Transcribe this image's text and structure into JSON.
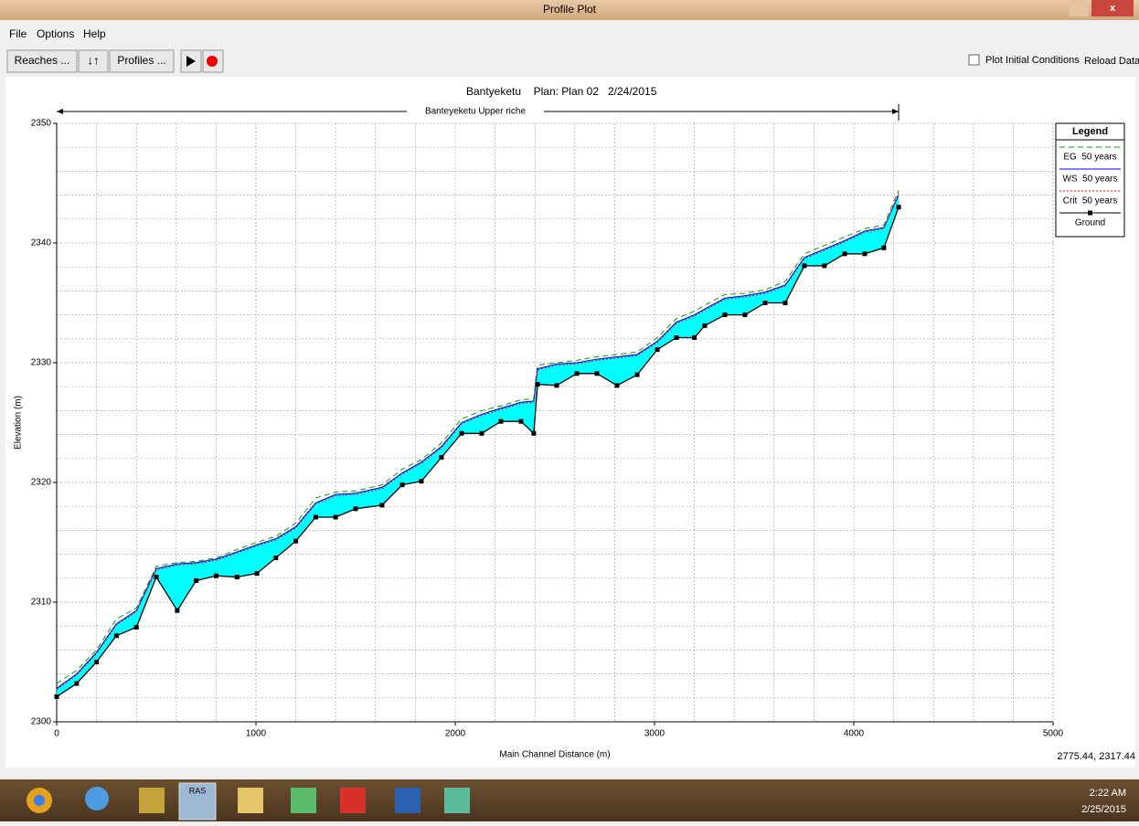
{
  "window": {
    "title": "Profile Plot",
    "menu": [
      "File",
      "Options",
      "Help"
    ],
    "toolbar": {
      "reaches": "Reaches ...",
      "profiles": "Profiles ...",
      "checkbox": "Plot Initial Conditions",
      "reload": "Reload Data"
    },
    "status": "2775.44, 2317.44"
  },
  "taskbar": {
    "ras": "RAS",
    "time": "2:22 AM",
    "date": "2/25/2015"
  },
  "chart_data": {
    "type": "line",
    "title": "Bantyeketu",
    "subtitle": "Plan: Plan 02   2/24/2015",
    "annotation": "Banteyeketu Upper riche",
    "x_label": "Main Channel Distance (m)",
    "y_label": "Elevation (m)",
    "legend_title": "Legend",
    "x": [
      0,
      100,
      200,
      300,
      400,
      500,
      605,
      700,
      800,
      905,
      1005,
      1100,
      1200,
      1300,
      1400,
      1500,
      1633,
      1734,
      1830,
      1931,
      2032,
      2133,
      2229,
      2330,
      2394,
      2413,
      2509,
      2610,
      2711,
      2812,
      2913,
      3014,
      3110,
      3200,
      3252,
      3353,
      3454,
      3555,
      3656,
      3752,
      3853,
      3954,
      4055,
      4151,
      4225
    ],
    "series": [
      {
        "name": "EG  50 years",
        "color": "#00a000",
        "values": [
          2303.2,
          2304.3,
          2306.0,
          2308.6,
          2309.5,
          2313.0,
          2313.3,
          2313.4,
          2313.7,
          2314.4,
          2315.0,
          2315.5,
          2316.6,
          2318.7,
          2319.2,
          2319.3,
          2319.8,
          2321.1,
          2321.9,
          2323.3,
          2325.3,
          2326.0,
          2326.4,
          2326.9,
          2327.0,
          2329.8,
          2330.0,
          2330.2,
          2330.5,
          2330.7,
          2330.9,
          2332.1,
          2333.7,
          2334.3,
          2334.8,
          2335.7,
          2335.8,
          2336.1,
          2336.8,
          2339.1,
          2339.8,
          2340.5,
          2341.2,
          2341.5,
          2344.4
        ]
      },
      {
        "name": "WS  50 years",
        "color": "#0000ff",
        "values": [
          2302.8,
          2304.0,
          2305.8,
          2308.2,
          2309.3,
          2312.8,
          2313.2,
          2313.3,
          2313.6,
          2314.2,
          2314.8,
          2315.3,
          2316.3,
          2318.3,
          2319.0,
          2319.1,
          2319.6,
          2320.8,
          2321.7,
          2323.0,
          2325.0,
          2325.7,
          2326.2,
          2326.7,
          2326.8,
          2329.5,
          2329.9,
          2330.0,
          2330.3,
          2330.5,
          2330.7,
          2331.8,
          2333.4,
          2334.0,
          2334.5,
          2335.4,
          2335.6,
          2335.9,
          2336.5,
          2338.8,
          2339.5,
          2340.2,
          2341.0,
          2341.3,
          2344.0
        ]
      },
      {
        "name": "Crit  50 years",
        "color": "#ff0000",
        "values": [
          2302.7,
          2303.9,
          2305.7,
          2308.1,
          2309.2,
          2312.7,
          2313.1,
          2313.2,
          2313.5,
          2314.1,
          2314.7,
          2315.2,
          2316.2,
          2318.2,
          2318.9,
          2319.0,
          2319.5,
          2320.7,
          2321.6,
          2322.9,
          2324.9,
          2325.6,
          2326.1,
          2326.6,
          2326.7,
          2329.4,
          2329.8,
          2329.9,
          2330.2,
          2330.4,
          2330.6,
          2331.7,
          2333.3,
          2333.9,
          2334.4,
          2335.3,
          2335.5,
          2335.8,
          2336.4,
          2338.7,
          2339.4,
          2340.1,
          2340.9,
          2341.2,
          2344.2
        ]
      },
      {
        "name": "Ground",
        "color": "#000000",
        "values": [
          2302.1,
          2303.2,
          2305.0,
          2307.2,
          2307.9,
          2312.1,
          2309.3,
          2311.8,
          2312.2,
          2312.1,
          2312.4,
          2313.7,
          2315.1,
          2317.1,
          2317.1,
          2317.8,
          2318.1,
          2319.8,
          2320.1,
          2322.1,
          2324.1,
          2324.1,
          2325.1,
          2325.1,
          2324.1,
          2328.2,
          2328.1,
          2329.1,
          2329.1,
          2328.1,
          2329.0,
          2331.1,
          2332.1,
          2332.1,
          2333.1,
          2334.0,
          2334.0,
          2335.0,
          2335.0,
          2338.1,
          2338.1,
          2339.1,
          2339.1,
          2339.6,
          2343.0
        ]
      }
    ],
    "fill_color": "#00ffff",
    "xlim": [
      0,
      5000
    ],
    "xticks": [
      0,
      1000,
      2000,
      3000,
      4000,
      5000
    ],
    "ylim": [
      2300,
      2350
    ],
    "yticks": [
      2300,
      2310,
      2320,
      2330,
      2340,
      2350
    ],
    "grid": true,
    "legend": "right"
  }
}
